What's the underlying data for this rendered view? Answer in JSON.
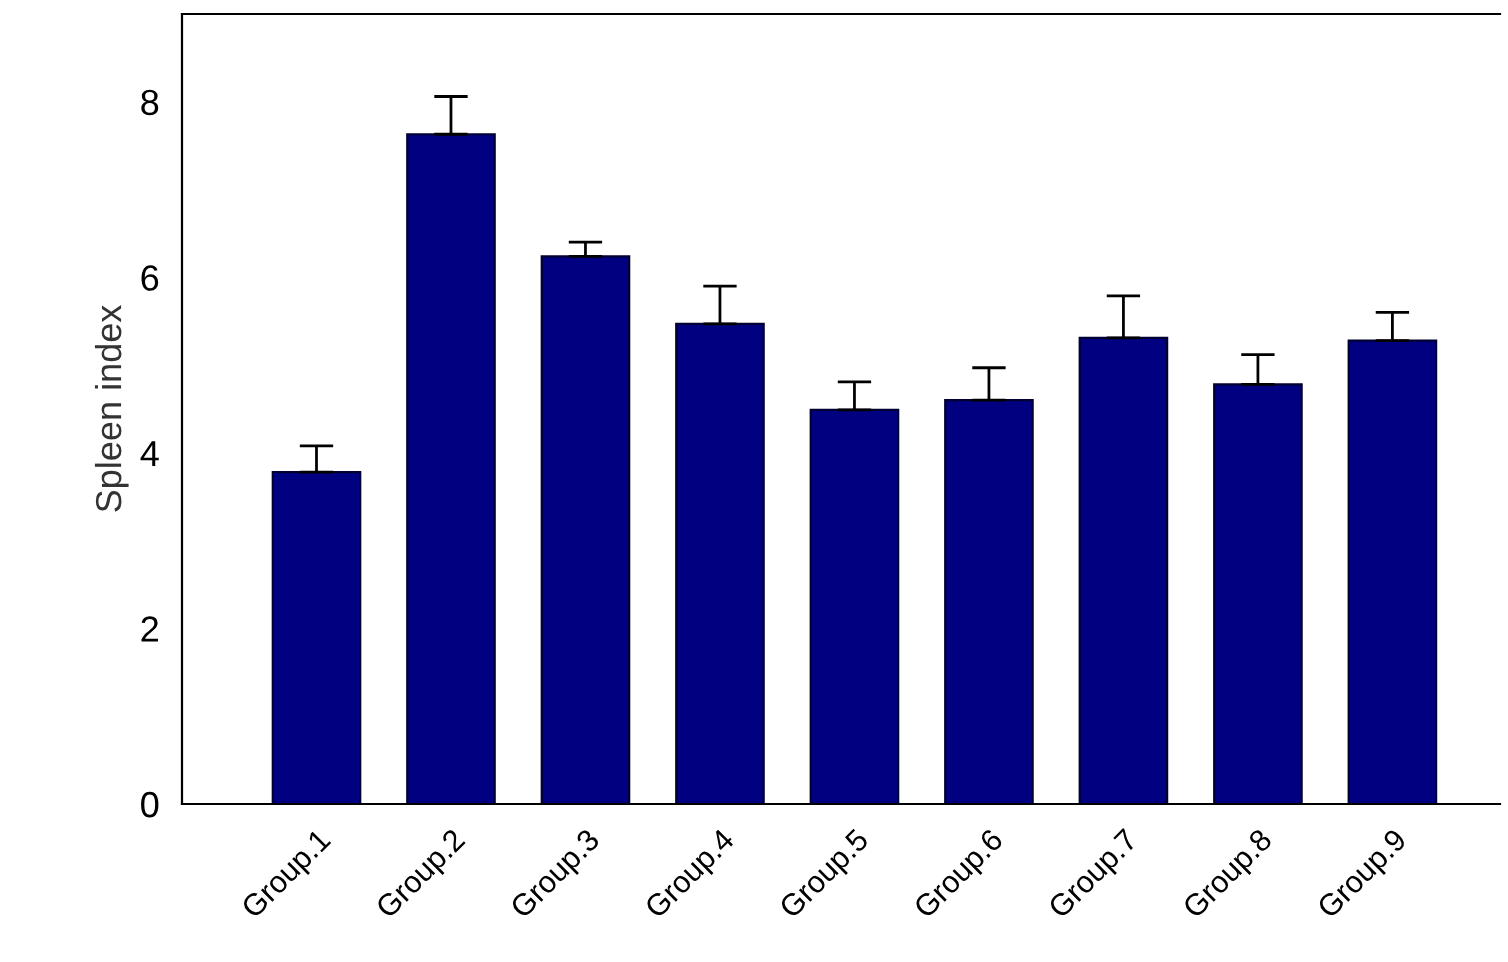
{
  "chart_data": {
    "type": "bar",
    "ylabel": "Spleen index",
    "categories": [
      "Group.1",
      "Group.2",
      "Group.3",
      "Group.4",
      "Group.5",
      "Group.6",
      "Group.7",
      "Group.8",
      "Group.9"
    ],
    "values": [
      3.78,
      7.63,
      6.24,
      5.47,
      4.49,
      4.6,
      5.31,
      4.78,
      5.28
    ],
    "errors": [
      [
        3.78,
        4.08
      ],
      [
        7.63,
        8.06
      ],
      [
        6.24,
        6.4
      ],
      [
        5.47,
        5.9
      ],
      [
        4.49,
        4.81
      ],
      [
        4.6,
        4.97
      ],
      [
        5.31,
        5.79
      ],
      [
        4.78,
        5.12
      ],
      [
        5.28,
        5.6
      ]
    ],
    "color": "#000080",
    "ylim": [
      0,
      9
    ],
    "yticks": [
      0,
      2,
      4,
      6,
      8
    ],
    "grid": false,
    "legend": false
  }
}
